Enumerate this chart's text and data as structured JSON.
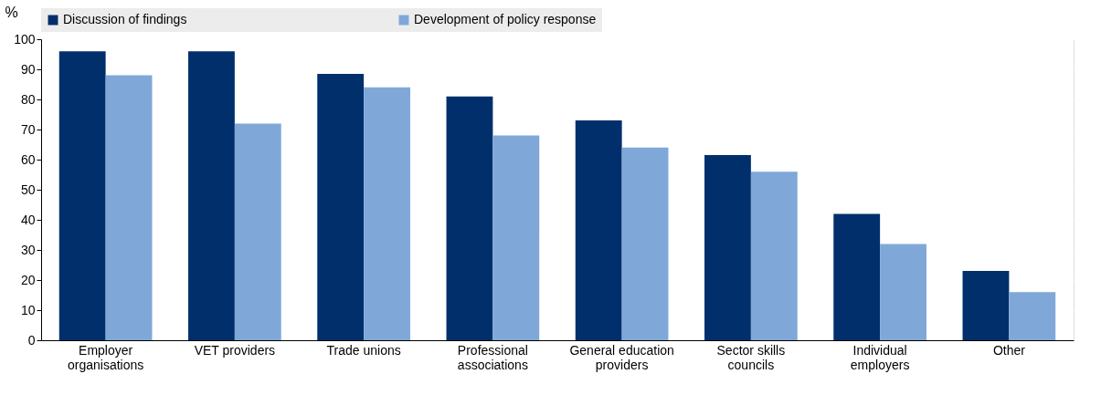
{
  "chart_data": {
    "type": "bar",
    "ylabel": "%",
    "categories": [
      "Employer organisations",
      "VET providers",
      "Trade unions",
      "Professional associations",
      "General education providers",
      "Sector skills councils",
      "Individual employers",
      "Other"
    ],
    "series": [
      {
        "name": "Discussion of findings",
        "color": "#002f6c",
        "values": [
          96,
          96,
          88.5,
          81,
          73,
          61.5,
          42,
          23
        ]
      },
      {
        "name": "Development of policy response",
        "color": "#7fa8d9",
        "values": [
          88,
          72,
          84,
          68,
          64,
          56,
          32,
          16
        ]
      }
    ],
    "ylim": [
      0,
      100
    ],
    "yticks": [
      0,
      10,
      20,
      30,
      40,
      50,
      60,
      70,
      80,
      90,
      100
    ],
    "grid": true,
    "legend": "top"
  }
}
